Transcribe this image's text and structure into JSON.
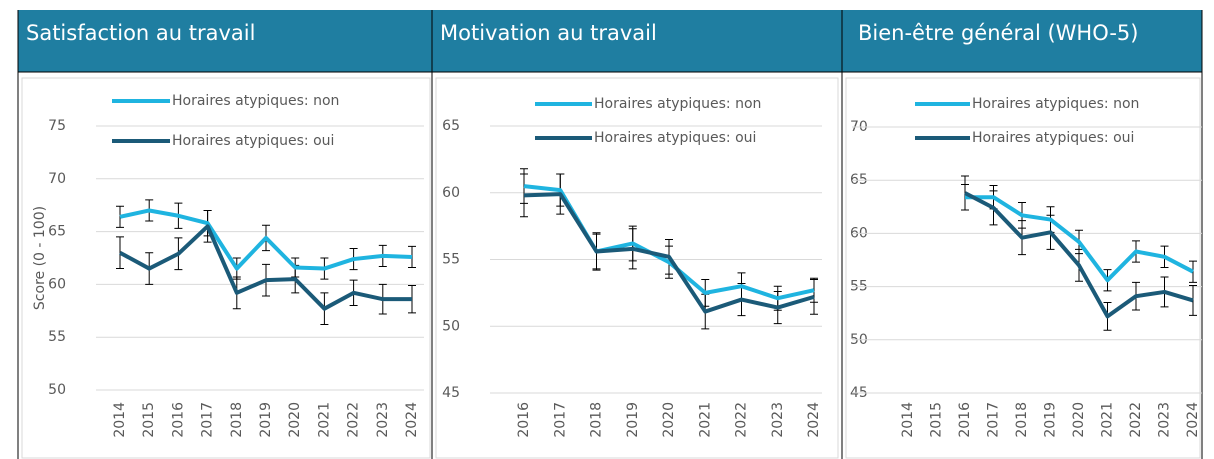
{
  "chart_data": [
    {
      "type": "line",
      "title": "Satisfaction au travail",
      "ylabel": "Score (0 - 100)",
      "categories": [
        "2014",
        "2015",
        "2016",
        "2017",
        "2018",
        "2019",
        "2020",
        "2021",
        "2022",
        "2023",
        "2024"
      ],
      "ylim": [
        50,
        75
      ],
      "yticks": [
        50,
        55,
        60,
        65,
        70,
        75
      ],
      "grid": true,
      "series": [
        {
          "name": "Horaires atypiques: non",
          "color": "#1fb4e0",
          "values": [
            66.4,
            67.0,
            66.5,
            65.8,
            61.5,
            64.4,
            61.6,
            61.5,
            62.4,
            62.7,
            62.6
          ],
          "errors": [
            1.0,
            1.0,
            1.2,
            1.2,
            1.0,
            1.2,
            0.9,
            1.0,
            1.0,
            1.0,
            1.0
          ]
        },
        {
          "name": "Horaires atypiques: oui",
          "color": "#1b5a78",
          "values": [
            63.0,
            61.5,
            62.9,
            65.5,
            59.2,
            60.4,
            60.5,
            57.7,
            59.2,
            58.6,
            58.6
          ],
          "errors": [
            1.5,
            1.5,
            1.5,
            1.5,
            1.5,
            1.5,
            1.3,
            1.5,
            1.2,
            1.4,
            1.3
          ]
        }
      ]
    },
    {
      "type": "line",
      "title": "Motivation au travail",
      "categories": [
        "2016",
        "2017",
        "2018",
        "2019",
        "2020",
        "2021",
        "2022",
        "2023",
        "2024"
      ],
      "ylim": [
        45,
        65
      ],
      "yticks": [
        45,
        50,
        55,
        60,
        65
      ],
      "grid": true,
      "series": [
        {
          "name": "Horaires atypiques: non",
          "color": "#1fb4e0",
          "values": [
            60.5,
            60.2,
            55.6,
            56.2,
            54.8,
            52.5,
            53.0,
            52.1,
            52.7
          ],
          "errors": [
            1.3,
            1.2,
            1.3,
            1.3,
            1.2,
            1.0,
            1.0,
            0.9,
            0.9
          ]
        },
        {
          "name": "Horaires atypiques: oui",
          "color": "#1b5a78",
          "values": [
            59.8,
            59.9,
            55.6,
            55.8,
            55.2,
            51.1,
            52.0,
            51.4,
            52.2
          ],
          "errors": [
            1.6,
            1.5,
            1.4,
            1.5,
            1.3,
            1.3,
            1.2,
            1.2,
            1.3
          ]
        }
      ]
    },
    {
      "type": "line",
      "title": "Bien-être  général  (WHO-5)",
      "categories": [
        "2014",
        "2015",
        "2016",
        "2017",
        "2018",
        "2019",
        "2020",
        "2021",
        "2022",
        "2023",
        "2024"
      ],
      "ylim": [
        45,
        70
      ],
      "yticks": [
        45,
        50,
        55,
        60,
        65,
        70
      ],
      "grid": true,
      "series": [
        {
          "name": "Horaires atypiques: non",
          "color": "#1fb4e0",
          "values": [
            null,
            null,
            63.4,
            63.4,
            61.7,
            61.3,
            59.2,
            55.6,
            58.3,
            57.8,
            56.4
          ],
          "errors": [
            null,
            null,
            1.2,
            1.1,
            1.2,
            1.2,
            1.1,
            1.0,
            1.0,
            1.0,
            1.0
          ]
        },
        {
          "name": "Horaires atypiques: oui",
          "color": "#1b5a78",
          "values": [
            null,
            null,
            63.8,
            62.4,
            59.6,
            60.1,
            57.0,
            52.2,
            54.1,
            54.5,
            53.7
          ],
          "errors": [
            null,
            null,
            1.6,
            1.6,
            1.6,
            1.6,
            1.5,
            1.3,
            1.3,
            1.4,
            1.4
          ]
        }
      ]
    }
  ]
}
